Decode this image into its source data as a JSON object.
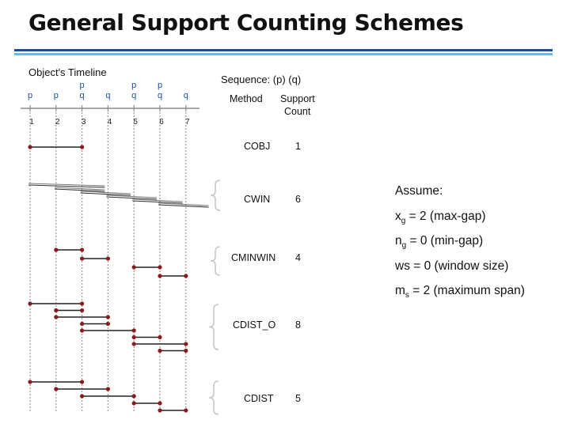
{
  "slide": {
    "title": "General Support Counting Schemes",
    "colors": {
      "rule_dark": "#1a4fa0",
      "rule_light": "#56c2e6",
      "event": "#8b1a1a",
      "line": "#222222",
      "brace": "#c8c8c8"
    }
  },
  "timeline": {
    "label": "Object's Timeline",
    "ticks": [
      {
        "t": 1,
        "events": [
          "p"
        ]
      },
      {
        "t": 2,
        "events": [
          "p"
        ]
      },
      {
        "t": 3,
        "events": [
          "p",
          "q"
        ]
      },
      {
        "t": 4,
        "events": [
          "q"
        ]
      },
      {
        "t": 5,
        "events": [
          "p",
          "q"
        ]
      },
      {
        "t": 6,
        "events": [
          "p",
          "q"
        ]
      },
      {
        "t": 7,
        "events": [
          "q"
        ]
      }
    ]
  },
  "table": {
    "sequence_label": "Sequence: (p) (q)",
    "method_header": "Method",
    "support_header_line1": "Support",
    "support_header_line2": "Count"
  },
  "methods": [
    {
      "name": "COBJ",
      "count": "1",
      "occurrences": [
        {
          "from": 1,
          "to": 3
        }
      ]
    },
    {
      "name": "CWIN",
      "count": "6",
      "style": "window",
      "occurrences": [
        {
          "from": 1,
          "to": 4
        },
        {
          "from": 2,
          "to": 4
        },
        {
          "from": 3,
          "to": 5
        },
        {
          "from": 4,
          "to": 6
        },
        {
          "from": 5,
          "to": 7
        },
        {
          "from": 6,
          "to": 8
        }
      ]
    },
    {
      "name": "CMINWIN",
      "count": "4",
      "occurrences": [
        {
          "from": 2,
          "to": 3
        },
        {
          "from": 3,
          "to": 4
        },
        {
          "from": 5,
          "to": 6
        },
        {
          "from": 6,
          "to": 7
        }
      ]
    },
    {
      "name": "CDIST_O",
      "count": "8",
      "occurrences": [
        {
          "from": 1,
          "to": 3
        },
        {
          "from": 2,
          "to": 3
        },
        {
          "from": 2,
          "to": 4
        },
        {
          "from": 3,
          "to": 4
        },
        {
          "from": 3,
          "to": 5
        },
        {
          "from": 5,
          "to": 6
        },
        {
          "from": 5,
          "to": 7
        },
        {
          "from": 6,
          "to": 7
        }
      ]
    },
    {
      "name": "CDIST",
      "count": "5",
      "occurrences": [
        {
          "from": 1,
          "to": 3
        },
        {
          "from": 2,
          "to": 4
        },
        {
          "from": 3,
          "to": 5
        },
        {
          "from": 5,
          "to": 6
        },
        {
          "from": 6,
          "to": 7
        }
      ]
    }
  ],
  "assumptions": {
    "heading": "Assume:",
    "items": [
      {
        "sym": "x",
        "sub": "g",
        "rest": " = 2 (max-gap)"
      },
      {
        "sym": "n",
        "sub": "g",
        "rest": " = 0 (min-gap)"
      },
      {
        "sym": "ws",
        "sub": "",
        "rest": " = 0 (window size)"
      },
      {
        "sym": "m",
        "sub": "s",
        "rest": " = 2 (maximum span)"
      }
    ]
  }
}
